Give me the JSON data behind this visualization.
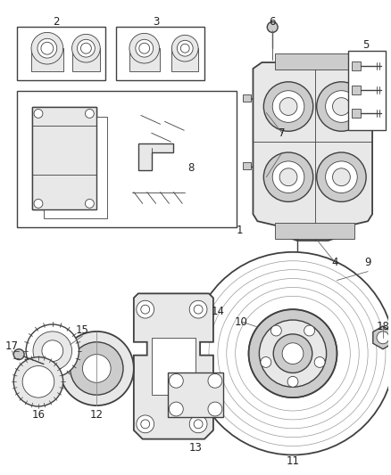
{
  "bg_color": "#ffffff",
  "line_color": "#404040",
  "fill_light": "#e8e8e8",
  "fill_mid": "#cccccc",
  "fill_dark": "#aaaaaa",
  "font_size": 8.5,
  "label_color": "#222222",
  "fig_w": 4.38,
  "fig_h": 5.33,
  "dpi": 100
}
